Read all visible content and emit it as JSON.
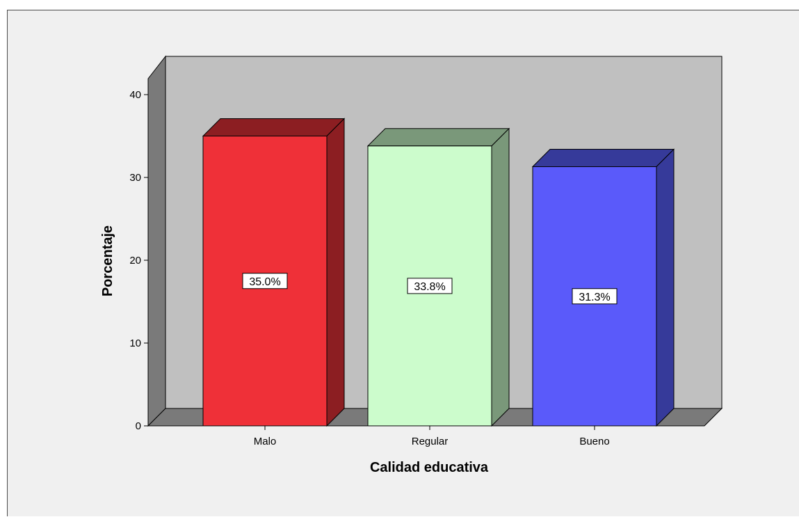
{
  "chart_data": {
    "type": "bar",
    "categories": [
      "Malo",
      "Regular",
      "Bueno"
    ],
    "values": [
      35.0,
      33.8,
      31.3
    ],
    "data_labels": [
      "35.0%",
      "33.8%",
      "31.3%"
    ],
    "title": "",
    "xlabel": "Calidad educativa",
    "ylabel": "Porcentaje",
    "ylim": [
      0,
      40
    ],
    "yticks": [
      "0",
      "10",
      "20",
      "30",
      "40"
    ],
    "grid": false,
    "style": "3d",
    "colors": {
      "bars_front": [
        "#ef3038",
        "#ccfccc",
        "#5a5afa"
      ],
      "bars_side": [
        "#8c1e22",
        "#7a987a",
        "#363a9a"
      ],
      "bars_top": [
        "#8c1e22",
        "#7a987a",
        "#363a9a"
      ],
      "back_wall": "#c0c0c0",
      "side_wall": "#7a7a7a",
      "floor": "#7a7a7a",
      "background": "#f0f0f0"
    }
  }
}
